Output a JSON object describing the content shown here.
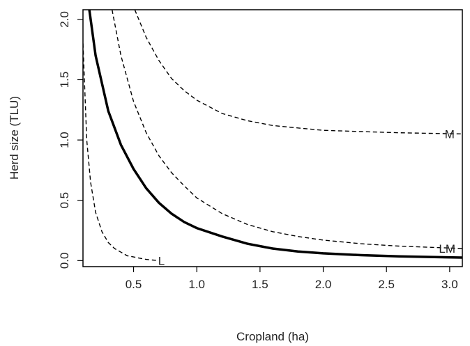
{
  "chart_data": {
    "type": "line",
    "xlabel": "Cropland (ha)",
    "ylabel": "Herd size (TLU)",
    "xlim": [
      0.1,
      3.1
    ],
    "ylim": [
      -0.05,
      2.08
    ],
    "xticks": [
      {
        "value": 0.5,
        "label": "0.5"
      },
      {
        "value": 1.0,
        "label": "1.0"
      },
      {
        "value": 1.5,
        "label": "1.5"
      },
      {
        "value": 2.0,
        "label": "2.0"
      },
      {
        "value": 2.5,
        "label": "2.5"
      },
      {
        "value": 3.0,
        "label": "3.0"
      }
    ],
    "yticks": [
      {
        "value": 0.0,
        "label": "0.0"
      },
      {
        "value": 0.5,
        "label": "0.5"
      },
      {
        "value": 1.0,
        "label": "1.0"
      },
      {
        "value": 1.5,
        "label": "1.5"
      },
      {
        "value": 2.0,
        "label": "2.0"
      }
    ],
    "grid": false,
    "legend": "none",
    "series": [
      {
        "label": "L",
        "style": "dashed",
        "color": "#000000",
        "x": [
          0.1,
          0.13,
          0.16,
          0.2,
          0.25,
          0.3,
          0.35,
          0.4,
          0.45,
          0.5,
          0.55,
          0.6,
          0.65,
          0.7
        ],
        "y": [
          1.8,
          1.0,
          0.65,
          0.4,
          0.24,
          0.15,
          0.1,
          0.07,
          0.04,
          0.03,
          0.02,
          0.01,
          0.005,
          0.0
        ]
      },
      {
        "label": "",
        "style": "solid",
        "color": "#000000",
        "x": [
          0.15,
          0.2,
          0.3,
          0.4,
          0.5,
          0.6,
          0.7,
          0.8,
          0.9,
          1.0,
          1.2,
          1.4,
          1.6,
          1.8,
          2.0,
          2.3,
          2.6,
          3.1
        ],
        "y": [
          2.08,
          1.7,
          1.24,
          0.96,
          0.76,
          0.6,
          0.48,
          0.39,
          0.32,
          0.27,
          0.2,
          0.14,
          0.1,
          0.075,
          0.06,
          0.045,
          0.035,
          0.025
        ]
      },
      {
        "label": "LM",
        "style": "dashed",
        "color": "#000000",
        "x": [
          0.33,
          0.4,
          0.5,
          0.6,
          0.7,
          0.8,
          0.9,
          1.0,
          1.2,
          1.4,
          1.6,
          1.8,
          2.0,
          2.3,
          2.6,
          3.1
        ],
        "y": [
          2.08,
          1.7,
          1.32,
          1.06,
          0.87,
          0.73,
          0.62,
          0.52,
          0.39,
          0.3,
          0.24,
          0.2,
          0.17,
          0.14,
          0.12,
          0.1
        ]
      },
      {
        "label": "M",
        "style": "dashed",
        "color": "#000000",
        "x": [
          0.51,
          0.6,
          0.7,
          0.8,
          0.9,
          1.0,
          1.2,
          1.4,
          1.6,
          1.8,
          2.0,
          2.3,
          2.6,
          3.1
        ],
        "y": [
          2.08,
          1.85,
          1.66,
          1.51,
          1.41,
          1.33,
          1.22,
          1.16,
          1.12,
          1.1,
          1.08,
          1.07,
          1.06,
          1.05
        ]
      }
    ],
    "labels": [
      {
        "text": "L",
        "x": 0.72,
        "y": 0.0
      },
      {
        "text": "LM",
        "x": 2.98,
        "y": 0.1
      },
      {
        "text": "M",
        "x": 3.0,
        "y": 1.05
      }
    ]
  }
}
